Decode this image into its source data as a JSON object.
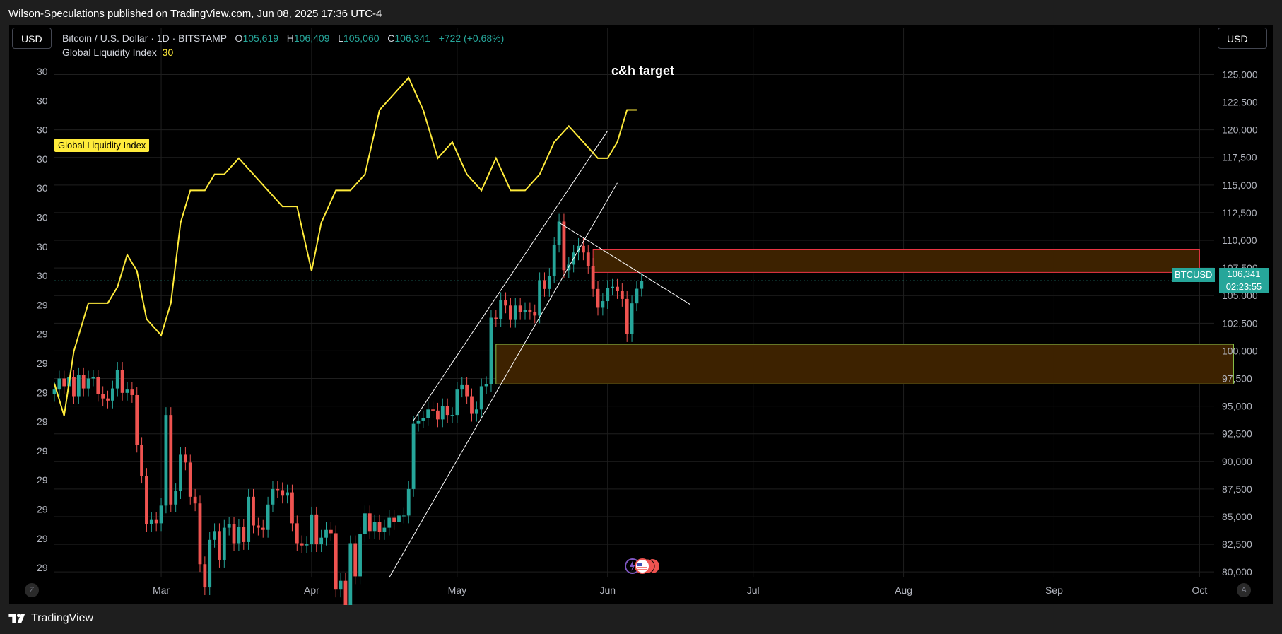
{
  "publish_line": "Wilson-Speculations published on TradingView.com, Jun 08, 2025 17:36 UTC-4",
  "currency_left": "USD",
  "currency_right": "USD",
  "legend": {
    "symbol": "Bitcoin / U.S. Dollar · 1D · BITSTAMP",
    "o_label": "O",
    "o_value": "105,619",
    "h_label": "H",
    "h_value": "106,409",
    "l_label": "L",
    "l_value": "105,060",
    "c_label": "C",
    "c_value": "106,341",
    "change": "+722 (+0.68%)",
    "indicator_name": "Global Liquidity Index",
    "indicator_value": "30"
  },
  "indicator_tag": "Global Liquidity Index",
  "annotation": "c&h target",
  "price_tag": {
    "symbol": "BTCUSD",
    "price": "106,341",
    "countdown": "02:23:55"
  },
  "footer": {
    "brand": "TradingView",
    "left_button": "Z",
    "right_button": "A"
  },
  "colors": {
    "up": "#26a69a",
    "down": "#ef5350",
    "gli_line": "#ffeb3b",
    "zone_fill": "#3d2200",
    "resistance_border": "#f23645",
    "support_border": "#8bc34a"
  },
  "chart_data": {
    "type": "candlestick",
    "y_axis": {
      "ticks": [
        80000,
        82500,
        85000,
        87500,
        90000,
        92500,
        95000,
        97500,
        100000,
        102500,
        105000,
        107500,
        110000,
        112500,
        115000,
        117500,
        120000,
        122500,
        125000
      ],
      "tick_labels": [
        "80,000",
        "82,500",
        "85,000",
        "87,500",
        "90,000",
        "92,500",
        "95,000",
        "97,500",
        "100,000",
        "102,500",
        "105,000",
        "107,500",
        "110,000",
        "112,500",
        "115,000",
        "117,500",
        "120,000",
        "122,500",
        "125,000"
      ],
      "range": [
        79500,
        126500
      ]
    },
    "left_axis_labels": [
      "30",
      "30",
      "30",
      "30",
      "30",
      "30",
      "30",
      "30",
      "29",
      "29",
      "29",
      "29",
      "29",
      "29",
      "29",
      "29",
      "29",
      "29"
    ],
    "x_labels": [
      {
        "label": "Mar",
        "date": "2025-03-01"
      },
      {
        "label": "Apr",
        "date": "2025-04-01"
      },
      {
        "label": "May",
        "date": "2025-05-01"
      },
      {
        "label": "Jun",
        "date": "2025-06-01"
      },
      {
        "label": "Jul",
        "date": "2025-07-01"
      },
      {
        "label": "Aug",
        "date": "2025-08-01"
      },
      {
        "label": "Sep",
        "date": "2025-09-01"
      },
      {
        "label": "Oct",
        "date": "2025-10-01"
      }
    ],
    "x_range": [
      "2025-02-07",
      "2025-10-04"
    ],
    "last_price": 106341,
    "candles_close": [
      {
        "date": "2025-02-07",
        "close": 96500
      },
      {
        "date": "2025-02-08",
        "close": 97500
      },
      {
        "date": "2025-02-09",
        "close": 96800
      },
      {
        "date": "2025-02-10",
        "close": 97600
      },
      {
        "date": "2025-02-11",
        "close": 95900
      },
      {
        "date": "2025-02-12",
        "close": 97800
      },
      {
        "date": "2025-02-13",
        "close": 96600
      },
      {
        "date": "2025-02-14",
        "close": 97500
      },
      {
        "date": "2025-02-15",
        "close": 97600
      },
      {
        "date": "2025-02-16",
        "close": 96100
      },
      {
        "date": "2025-02-17",
        "close": 95700
      },
      {
        "date": "2025-02-18",
        "close": 95500
      },
      {
        "date": "2025-02-19",
        "close": 96600
      },
      {
        "date": "2025-02-20",
        "close": 98300
      },
      {
        "date": "2025-02-21",
        "close": 96200
      },
      {
        "date": "2025-02-22",
        "close": 96500
      },
      {
        "date": "2025-02-23",
        "close": 96000
      },
      {
        "date": "2025-02-24",
        "close": 91500
      },
      {
        "date": "2025-02-25",
        "close": 88700
      },
      {
        "date": "2025-02-26",
        "close": 84300
      },
      {
        "date": "2025-02-27",
        "close": 84700
      },
      {
        "date": "2025-02-28",
        "close": 84400
      },
      {
        "date": "2025-03-01",
        "close": 86000
      },
      {
        "date": "2025-03-02",
        "close": 94200
      },
      {
        "date": "2025-03-03",
        "close": 86100
      },
      {
        "date": "2025-03-04",
        "close": 87300
      },
      {
        "date": "2025-03-05",
        "close": 90600
      },
      {
        "date": "2025-03-06",
        "close": 89900
      },
      {
        "date": "2025-03-07",
        "close": 86800
      },
      {
        "date": "2025-03-08",
        "close": 86200
      },
      {
        "date": "2025-03-09",
        "close": 80700
      },
      {
        "date": "2025-03-10",
        "close": 78600
      },
      {
        "date": "2025-03-11",
        "close": 82900
      },
      {
        "date": "2025-03-12",
        "close": 83700
      },
      {
        "date": "2025-03-13",
        "close": 81100
      },
      {
        "date": "2025-03-14",
        "close": 84000
      },
      {
        "date": "2025-03-15",
        "close": 84300
      },
      {
        "date": "2025-03-16",
        "close": 82600
      },
      {
        "date": "2025-03-17",
        "close": 84100
      },
      {
        "date": "2025-03-18",
        "close": 82700
      },
      {
        "date": "2025-03-19",
        "close": 86800
      },
      {
        "date": "2025-03-20",
        "close": 84200
      },
      {
        "date": "2025-03-21",
        "close": 84000
      },
      {
        "date": "2025-03-22",
        "close": 83800
      },
      {
        "date": "2025-03-23",
        "close": 86100
      },
      {
        "date": "2025-03-24",
        "close": 87500
      },
      {
        "date": "2025-03-25",
        "close": 87400
      },
      {
        "date": "2025-03-26",
        "close": 86900
      },
      {
        "date": "2025-03-27",
        "close": 87200
      },
      {
        "date": "2025-03-28",
        "close": 84400
      },
      {
        "date": "2025-03-29",
        "close": 82600
      },
      {
        "date": "2025-03-30",
        "close": 82400
      },
      {
        "date": "2025-03-31",
        "close": 82500
      },
      {
        "date": "2025-04-01",
        "close": 85200
      },
      {
        "date": "2025-04-02",
        "close": 82500
      },
      {
        "date": "2025-04-03",
        "close": 83100
      },
      {
        "date": "2025-04-04",
        "close": 83800
      },
      {
        "date": "2025-04-05",
        "close": 83500
      },
      {
        "date": "2025-04-06",
        "close": 78400
      },
      {
        "date": "2025-04-07",
        "close": 79200
      },
      {
        "date": "2025-04-08",
        "close": 76300
      },
      {
        "date": "2025-04-09",
        "close": 82600
      },
      {
        "date": "2025-04-10",
        "close": 79600
      },
      {
        "date": "2025-04-11",
        "close": 83400
      },
      {
        "date": "2025-04-12",
        "close": 85300
      },
      {
        "date": "2025-04-13",
        "close": 83700
      },
      {
        "date": "2025-04-14",
        "close": 84500
      },
      {
        "date": "2025-04-15",
        "close": 83600
      },
      {
        "date": "2025-04-16",
        "close": 84000
      },
      {
        "date": "2025-04-17",
        "close": 84900
      },
      {
        "date": "2025-04-18",
        "close": 84500
      },
      {
        "date": "2025-04-19",
        "close": 85100
      },
      {
        "date": "2025-04-20",
        "close": 85100
      },
      {
        "date": "2025-04-21",
        "close": 87500
      },
      {
        "date": "2025-04-22",
        "close": 93400
      },
      {
        "date": "2025-04-23",
        "close": 93700
      },
      {
        "date": "2025-04-24",
        "close": 93900
      },
      {
        "date": "2025-04-25",
        "close": 94700
      },
      {
        "date": "2025-04-26",
        "close": 94600
      },
      {
        "date": "2025-04-27",
        "close": 93800
      },
      {
        "date": "2025-04-28",
        "close": 95000
      },
      {
        "date": "2025-04-29",
        "close": 94200
      },
      {
        "date": "2025-04-30",
        "close": 94200
      },
      {
        "date": "2025-05-01",
        "close": 96500
      },
      {
        "date": "2025-05-02",
        "close": 96900
      },
      {
        "date": "2025-05-03",
        "close": 95900
      },
      {
        "date": "2025-05-04",
        "close": 94300
      },
      {
        "date": "2025-05-05",
        "close": 94700
      },
      {
        "date": "2025-05-06",
        "close": 96800
      },
      {
        "date": "2025-05-07",
        "close": 97000
      },
      {
        "date": "2025-05-08",
        "close": 103000
      },
      {
        "date": "2025-05-09",
        "close": 102900
      },
      {
        "date": "2025-05-10",
        "close": 104600
      },
      {
        "date": "2025-05-11",
        "close": 104100
      },
      {
        "date": "2025-05-12",
        "close": 102800
      },
      {
        "date": "2025-05-13",
        "close": 104100
      },
      {
        "date": "2025-05-14",
        "close": 103500
      },
      {
        "date": "2025-05-15",
        "close": 103700
      },
      {
        "date": "2025-05-16",
        "close": 103500
      },
      {
        "date": "2025-05-17",
        "close": 103200
      },
      {
        "date": "2025-05-18",
        "close": 106400
      },
      {
        "date": "2025-05-19",
        "close": 105600
      },
      {
        "date": "2025-05-20",
        "close": 106800
      },
      {
        "date": "2025-05-21",
        "close": 109600
      },
      {
        "date": "2025-05-22",
        "close": 111700
      },
      {
        "date": "2025-05-23",
        "close": 107300
      },
      {
        "date": "2025-05-24",
        "close": 107800
      },
      {
        "date": "2025-05-25",
        "close": 108900
      },
      {
        "date": "2025-05-26",
        "close": 109500
      },
      {
        "date": "2025-05-27",
        "close": 108900
      },
      {
        "date": "2025-05-28",
        "close": 107700
      },
      {
        "date": "2025-05-29",
        "close": 105600
      },
      {
        "date": "2025-05-30",
        "close": 103900
      },
      {
        "date": "2025-05-31",
        "close": 104500
      },
      {
        "date": "2025-06-01",
        "close": 105700
      },
      {
        "date": "2025-06-02",
        "close": 105800
      },
      {
        "date": "2025-06-03",
        "close": 105400
      },
      {
        "date": "2025-06-04",
        "close": 104700
      },
      {
        "date": "2025-06-05",
        "close": 101500
      },
      {
        "date": "2025-06-06",
        "close": 104300
      },
      {
        "date": "2025-06-07",
        "close": 105619
      },
      {
        "date": "2025-06-08",
        "close": 106341
      }
    ],
    "global_liquidity_index_series": [
      {
        "date": "2025-02-07",
        "value": 29.2
      },
      {
        "date": "2025-02-09",
        "value": 29.0
      },
      {
        "date": "2025-02-11",
        "value": 29.4
      },
      {
        "date": "2025-02-14",
        "value": 29.7
      },
      {
        "date": "2025-02-18",
        "value": 29.7
      },
      {
        "date": "2025-02-20",
        "value": 29.8
      },
      {
        "date": "2025-02-22",
        "value": 30.0
      },
      {
        "date": "2025-02-24",
        "value": 29.9
      },
      {
        "date": "2025-02-26",
        "value": 29.6
      },
      {
        "date": "2025-03-01",
        "value": 29.5
      },
      {
        "date": "2025-03-03",
        "value": 29.7
      },
      {
        "date": "2025-03-05",
        "value": 30.2
      },
      {
        "date": "2025-03-07",
        "value": 30.4
      },
      {
        "date": "2025-03-10",
        "value": 30.4
      },
      {
        "date": "2025-03-12",
        "value": 30.5
      },
      {
        "date": "2025-03-14",
        "value": 30.5
      },
      {
        "date": "2025-03-17",
        "value": 30.6
      },
      {
        "date": "2025-03-20",
        "value": 30.5
      },
      {
        "date": "2025-03-23",
        "value": 30.4
      },
      {
        "date": "2025-03-26",
        "value": 30.3
      },
      {
        "date": "2025-03-29",
        "value": 30.3
      },
      {
        "date": "2025-04-01",
        "value": 29.9
      },
      {
        "date": "2025-04-03",
        "value": 30.2
      },
      {
        "date": "2025-04-06",
        "value": 30.4
      },
      {
        "date": "2025-04-09",
        "value": 30.4
      },
      {
        "date": "2025-04-12",
        "value": 30.5
      },
      {
        "date": "2025-04-15",
        "value": 30.9
      },
      {
        "date": "2025-04-18",
        "value": 31.0
      },
      {
        "date": "2025-04-21",
        "value": 31.1
      },
      {
        "date": "2025-04-24",
        "value": 30.9
      },
      {
        "date": "2025-04-27",
        "value": 30.6
      },
      {
        "date": "2025-04-30",
        "value": 30.7
      },
      {
        "date": "2025-05-03",
        "value": 30.5
      },
      {
        "date": "2025-05-06",
        "value": 30.4
      },
      {
        "date": "2025-05-09",
        "value": 30.6
      },
      {
        "date": "2025-05-12",
        "value": 30.4
      },
      {
        "date": "2025-05-15",
        "value": 30.4
      },
      {
        "date": "2025-05-18",
        "value": 30.5
      },
      {
        "date": "2025-05-21",
        "value": 30.7
      },
      {
        "date": "2025-05-24",
        "value": 30.8
      },
      {
        "date": "2025-05-27",
        "value": 30.7
      },
      {
        "date": "2025-05-30",
        "value": 30.6
      },
      {
        "date": "2025-06-01",
        "value": 30.6
      },
      {
        "date": "2025-06-03",
        "value": 30.7
      },
      {
        "date": "2025-06-05",
        "value": 30.9
      },
      {
        "date": "2025-06-07",
        "value": 30.9
      }
    ],
    "zones": [
      {
        "name": "resistance",
        "from_date": "2025-05-29",
        "to_date": "2025-10-01",
        "price_low": 107100,
        "price_high": 109200
      },
      {
        "name": "support",
        "from_date": "2025-05-09",
        "to_date": "2025-10-08",
        "price_low": 97000,
        "price_high": 100600
      }
    ],
    "trendlines": [
      {
        "name": "channel-upper",
        "from": {
          "date": "2025-04-22",
          "price": 93700
        },
        "to": {
          "date": "2025-06-01",
          "price": 119900
        }
      },
      {
        "name": "channel-lower",
        "from": {
          "date": "2025-04-17",
          "price": 79500
        },
        "to": {
          "date": "2025-06-03",
          "price": 115200
        }
      },
      {
        "name": "descending-line",
        "from": {
          "date": "2025-05-22",
          "price": 111600
        },
        "to": {
          "date": "2025-06-18",
          "price": 104200
        }
      }
    ]
  }
}
